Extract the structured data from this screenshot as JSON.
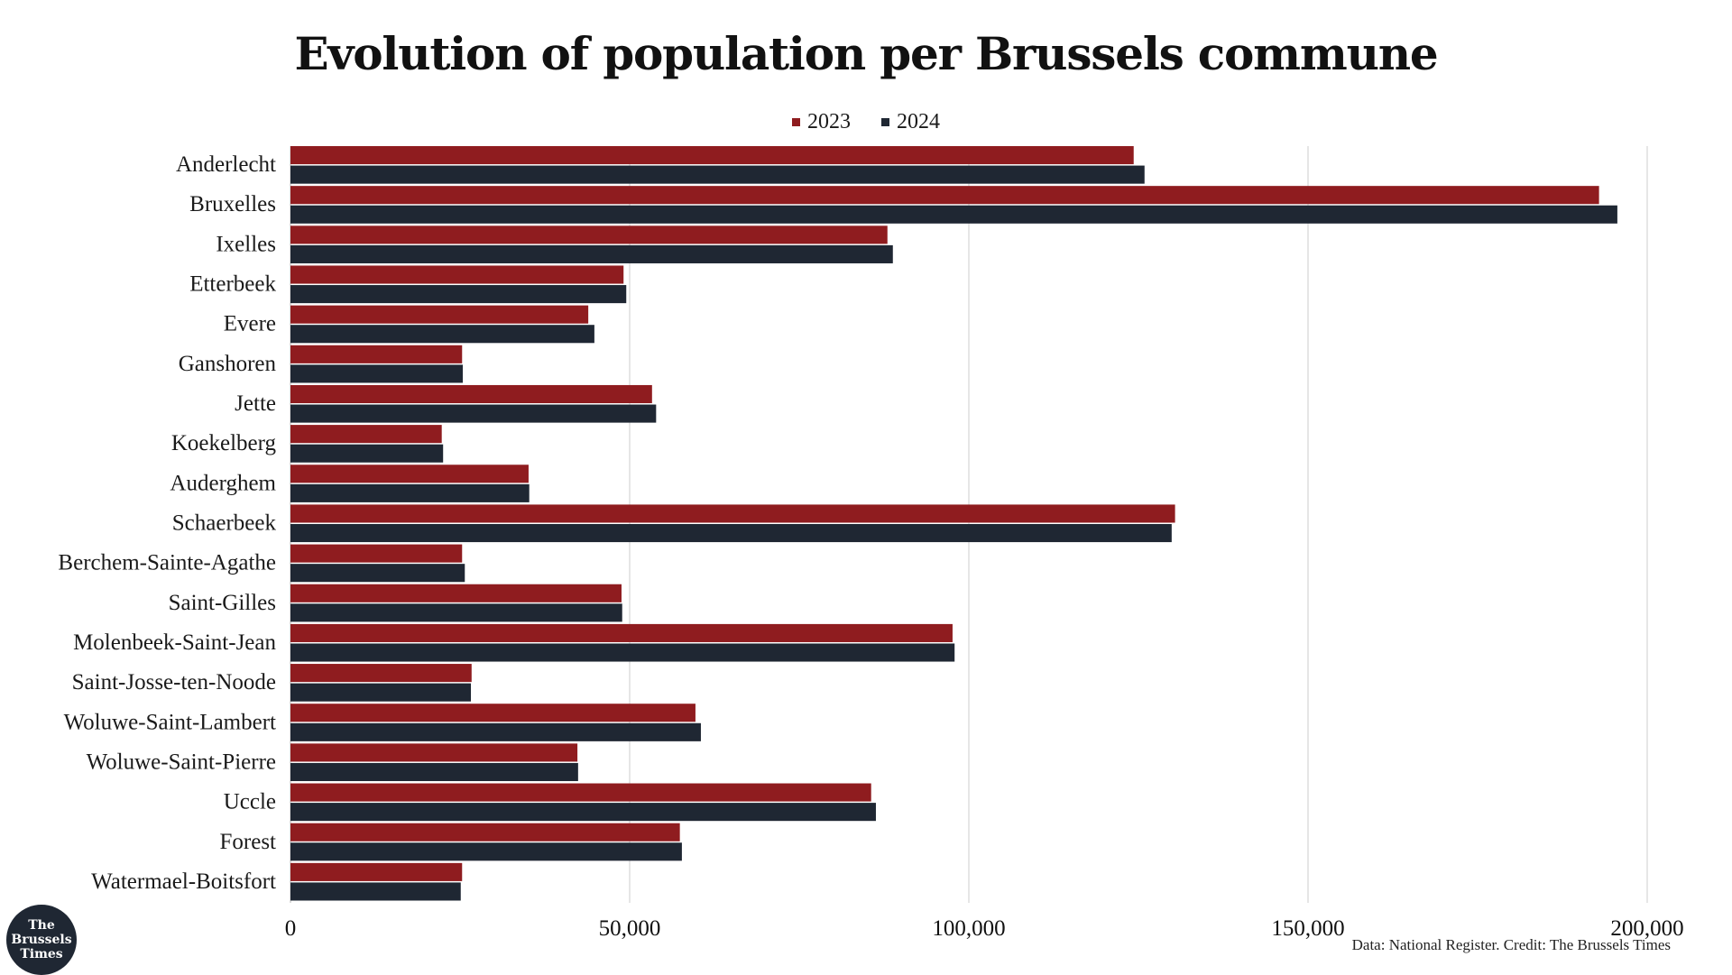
{
  "logo": {
    "lines": [
      "The",
      "Brussels",
      "Times"
    ]
  },
  "source_note": "Data: National Register. Credit: The Brussels Times",
  "colors": {
    "series_2023": "#8f1c1f",
    "series_2024": "#1f2733",
    "grid": "#d9d9d9"
  },
  "chart_data": {
    "type": "bar",
    "orientation": "horizontal",
    "title": "Evolution of population per Brussels commune",
    "xlabel": "",
    "ylabel": "",
    "xlim": [
      0,
      200000
    ],
    "xticks": [
      0,
      50000,
      100000,
      150000,
      200000
    ],
    "xtick_labels": [
      "0",
      "50,000",
      "100,000",
      "150,000",
      "200,000"
    ],
    "grid": "vertical",
    "legend_position": "top-center",
    "categories": [
      "Anderlecht",
      "Bruxelles",
      "Ixelles",
      "Etterbeek",
      "Evere",
      "Ganshoren",
      "Jette",
      "Koekelberg",
      "Auderghem",
      "Schaerbeek",
      "Berchem-Sainte-Agathe",
      "Saint-Gilles",
      "Molenbeek-Saint-Jean",
      "Saint-Josse-ten-Noode",
      "Woluwe-Saint-Lambert",
      "Woluwe-Saint-Pierre",
      "Uccle",
      "Forest",
      "Watermael-Boitsfort"
    ],
    "series": [
      {
        "name": "2023",
        "color": "#8f1c1f",
        "values": [
          124300,
          192900,
          88000,
          49100,
          43900,
          25300,
          53300,
          22300,
          35100,
          130400,
          25300,
          48800,
          97600,
          26700,
          59700,
          42300,
          85600,
          57400,
          25300
        ]
      },
      {
        "name": "2024",
        "color": "#1f2733",
        "values": [
          125900,
          195600,
          88800,
          49500,
          44800,
          25400,
          53900,
          22500,
          35200,
          129900,
          25700,
          48900,
          97900,
          26600,
          60500,
          42400,
          86300,
          57700,
          25100
        ]
      }
    ]
  }
}
